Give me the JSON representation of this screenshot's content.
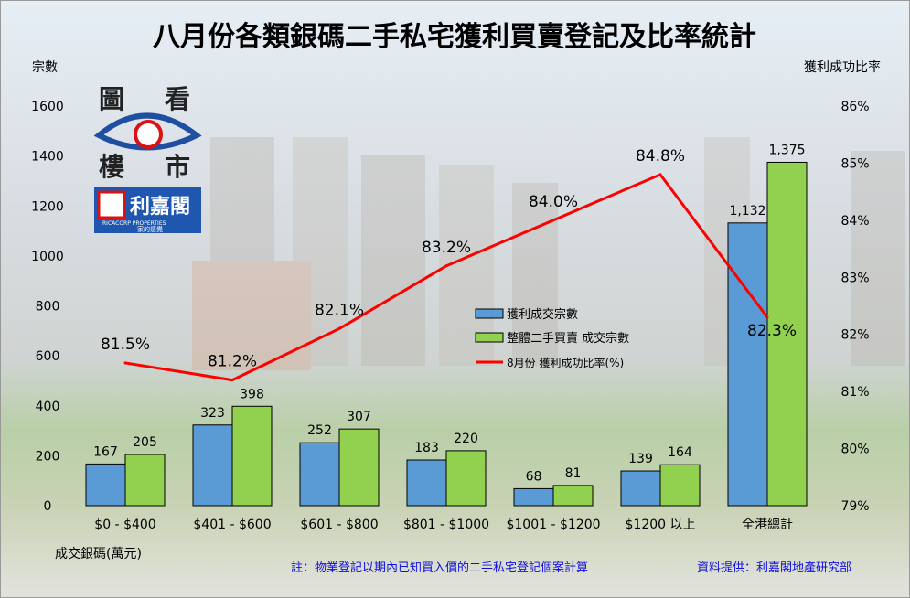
{
  "chart_data": {
    "type": "bar",
    "title": "八月份各類銀碼二手私宅獲利買賣登記及比率統計",
    "ylabel": "宗數",
    "y2label": "獲利成功比率",
    "xlabel": "成交銀碼(萬元)",
    "ylim": [
      0,
      1600
    ],
    "yticks": [
      0,
      200,
      400,
      600,
      800,
      1000,
      1200,
      1400,
      1600
    ],
    "y2lim": [
      79,
      86
    ],
    "y2ticks": [
      "79%",
      "80%",
      "81%",
      "82%",
      "83%",
      "84%",
      "85%",
      "86%"
    ],
    "categories": [
      "$0 - $400",
      "$401 - $600",
      "$601 - $800",
      "$801 - $1000",
      "$1001 - $1200",
      "$1200 以上",
      "全港總計"
    ],
    "series": [
      {
        "name": "獲利成交宗數",
        "type": "bar",
        "axis": "left",
        "color": "#5b9bd5",
        "values": [
          167,
          323,
          252,
          183,
          68,
          139,
          1132
        ],
        "labels": [
          "167",
          "323",
          "252",
          "183",
          "68",
          "139",
          "1,132"
        ]
      },
      {
        "name": "整體二手買賣 成交宗數",
        "type": "bar",
        "axis": "left",
        "color": "#92d050",
        "values": [
          205,
          398,
          307,
          220,
          81,
          164,
          1375
        ],
        "labels": [
          "205",
          "398",
          "307",
          "220",
          "81",
          "164",
          "1,375"
        ]
      },
      {
        "name": "8月份 獲利成功比率(%)",
        "type": "line",
        "axis": "right",
        "color": "#ff0000",
        "values": [
          81.5,
          81.2,
          82.1,
          83.2,
          84.0,
          84.8,
          82.3
        ],
        "labels": [
          "81.5%",
          "81.2%",
          "82.1%",
          "83.2%",
          "84.0%",
          "84.8%",
          "82.3%"
        ]
      }
    ],
    "legend": "center-right",
    "grid": false
  },
  "notes": {
    "footnote": "註：物業登記以期內已知買入價的二手私宅登記個案計算",
    "source": "資料提供：利嘉閣地產研究部"
  },
  "logo": {
    "chars": [
      "圖",
      "看",
      "樓",
      "市"
    ],
    "brand": "利嘉閣",
    "brand_en": "RICACORP PROPERTIES",
    "slogan": "家的感覺"
  }
}
